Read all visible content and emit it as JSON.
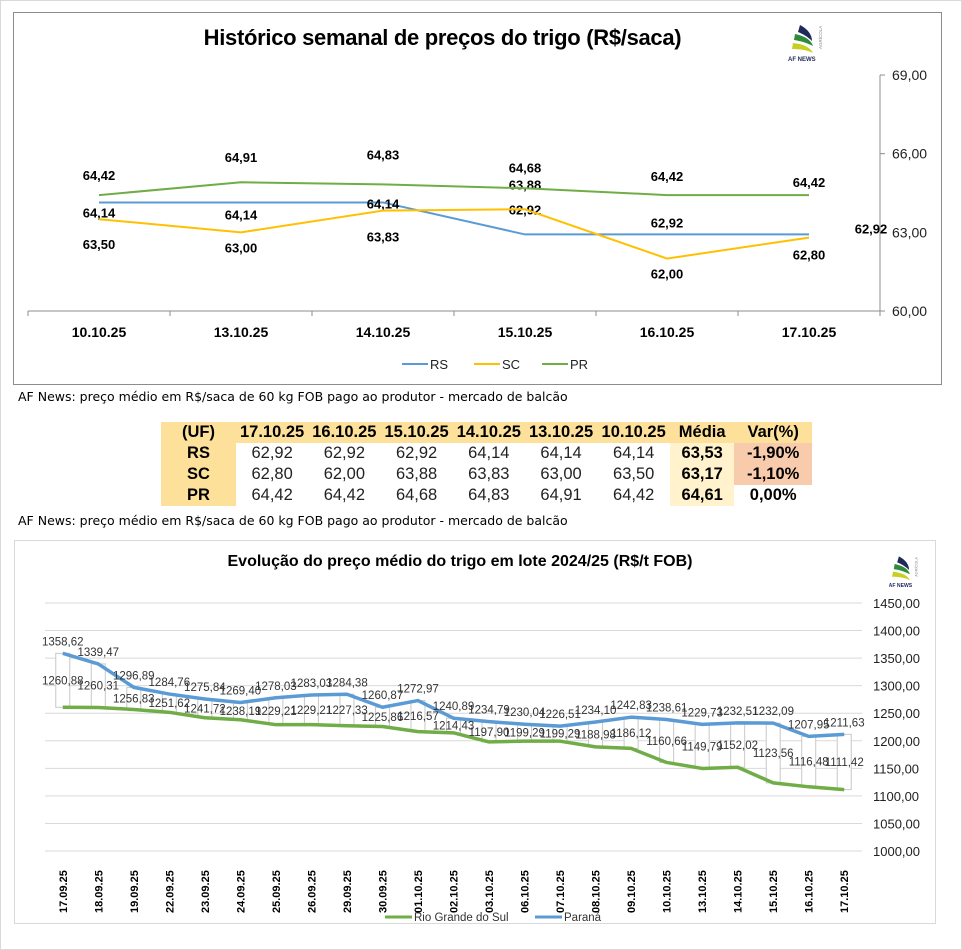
{
  "top_chart": {
    "title": "Histórico semanal de preços do trigo (R$/saca)",
    "logo": {
      "name": "AF NEWS",
      "tag": "AGRÍCOLA"
    },
    "caption": "AF News: preço médio em R$/saca de 60 kg FOB pago ao produtor - mercado de balcão"
  },
  "table": {
    "headers": [
      "(UF)",
      "17.10.25",
      "16.10.25",
      "15.10.25",
      "14.10.25",
      "13.10.25",
      "10.10.25",
      "Média",
      "Var(%)"
    ],
    "rows": [
      {
        "uf": "RS",
        "values": [
          "62,92",
          "62,92",
          "62,92",
          "64,14",
          "64,14",
          "64,14"
        ],
        "media": "63,53",
        "var": "-1,90%"
      },
      {
        "uf": "SC",
        "values": [
          "62,80",
          "62,00",
          "63,88",
          "63,83",
          "63,00",
          "63,50"
        ],
        "media": "63,17",
        "var": "-1,10%"
      },
      {
        "uf": "PR",
        "values": [
          "64,42",
          "64,42",
          "64,68",
          "64,83",
          "64,91",
          "64,42"
        ],
        "media": "64,61",
        "var": "0,00%"
      }
    ],
    "caption": "AF News: preço médio em R$/saca de 60 kg FOB pago ao produtor - mercado de balcão",
    "colors": {
      "header": "#fde19b",
      "media": "#fff2cc",
      "negative": "#f8cbad"
    }
  },
  "bottom_chart": {
    "title": "Evolução do preço médio do trigo em lote 2024/25 (R$/t FOB)",
    "logo": {
      "name": "AF NEWS",
      "tag": "AGRÍCOLA"
    }
  },
  "chart_data": [
    {
      "type": "line",
      "title": "Histórico semanal de preços do trigo (R$/saca)",
      "categories": [
        "10.10.25",
        "13.10.25",
        "14.10.25",
        "15.10.25",
        "16.10.25",
        "17.10.25"
      ],
      "series": [
        {
          "name": "RS",
          "color": "#5b9bd5",
          "values": [
            64.14,
            64.14,
            64.14,
            62.92,
            62.92,
            62.92
          ],
          "labels": [
            "64,14",
            "64,14",
            "64,14",
            "62,92",
            "62,92",
            "62,92"
          ]
        },
        {
          "name": "SC",
          "color": "#ffc000",
          "values": [
            63.5,
            63.0,
            63.83,
            63.88,
            62.0,
            62.8
          ],
          "labels": [
            "63,50",
            "63,00",
            "63,83",
            "63,88",
            "62,00",
            "62,80"
          ]
        },
        {
          "name": "PR",
          "color": "#70ad47",
          "values": [
            64.42,
            64.91,
            64.83,
            64.68,
            64.42,
            64.42
          ],
          "labels": [
            "64,42",
            "64,91",
            "64,83",
            "64,68",
            "64,42",
            "64,42"
          ]
        }
      ],
      "ylim": [
        60,
        69
      ],
      "yticks": [
        "60,00",
        "63,00",
        "66,00",
        "69,00"
      ],
      "yaxis_side": "right",
      "grid": false,
      "legend": "bottom"
    },
    {
      "type": "line",
      "title": "Evolução do preço médio do trigo em lote 2024/25 (R$/t FOB)",
      "categories": [
        "17.09.25",
        "18.09.25",
        "19.09.25",
        "22.09.25",
        "23.09.25",
        "24.09.25",
        "25.09.25",
        "26.09.25",
        "29.09.25",
        "30.09.25",
        "01.10.25",
        "02.10.25",
        "03.10.25",
        "06.10.25",
        "07.10.25",
        "08.10.25",
        "09.10.25",
        "10.10.25",
        "13.10.25",
        "14.10.25",
        "15.10.25",
        "16.10.25",
        "17.10.25"
      ],
      "series": [
        {
          "name": "Rio Grande do Sul",
          "color": "#70ad47",
          "values": [
            1260.88,
            1260.31,
            1256.83,
            1251.62,
            1241.72,
            1238.19,
            1229.21,
            1229.21,
            1227.33,
            1225.86,
            1216.57,
            1214.43,
            1197.9,
            1199.29,
            1199.29,
            1188.98,
            1186.12,
            1160.66,
            1149.79,
            1152.02,
            1123.56,
            1116.48,
            1111.42
          ],
          "labels": [
            "1260,88",
            "1260,31",
            "1256,83",
            "1251,62",
            "1241,72",
            "1238,19",
            "1229,21",
            "1229,21",
            "1227,33",
            "1225,86",
            "1216,57",
            "1214,43",
            "1197,90",
            "1199,29",
            "1199,29",
            "1188,98",
            "1186,12",
            "1160,66",
            "1149,79",
            "1152,02",
            "1123,56",
            "1116,48",
            "1111,42"
          ]
        },
        {
          "name": "Paraná",
          "color": "#5b9bd5",
          "values": [
            1358.62,
            1339.47,
            1296.89,
            1284.76,
            1275.84,
            1269.4,
            1278.03,
            1283.03,
            1284.38,
            1260.87,
            1272.97,
            1240.89,
            1234.79,
            1230.04,
            1226.51,
            1234.1,
            1242.83,
            1238.61,
            1229.73,
            1232.51,
            1232.09,
            1207.95,
            1211.63
          ],
          "labels": [
            "1358,62",
            "1339,47",
            "1296,89",
            "1284,76",
            "1275,84",
            "1269,40",
            "1278,03",
            "1283,03",
            "1284,38",
            "1260,87",
            "1272,97",
            "1240,89",
            "1234,79",
            "1230,04",
            "1226,51",
            "1234,10",
            "1242,83",
            "1238,61",
            "1229,73",
            "1232,51",
            "1232,09",
            "1207,95",
            "1211,63"
          ]
        }
      ],
      "ylim": [
        1000,
        1450
      ],
      "yticks": [
        "1000,00",
        "1050,00",
        "1100,00",
        "1150,00",
        "1200,00",
        "1250,00",
        "1300,00",
        "1350,00",
        "1400,00",
        "1450,00"
      ],
      "yaxis_side": "right",
      "grid": true,
      "high_low_bars": true,
      "legend": "bottom"
    }
  ]
}
